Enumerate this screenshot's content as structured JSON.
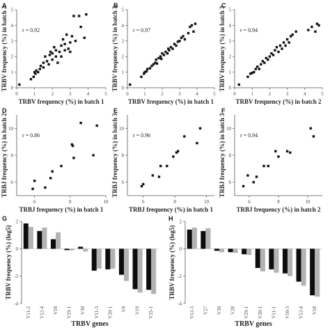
{
  "figure": {
    "colors": {
      "point": "#111111",
      "bar_dark": "#0d0d0d",
      "bar_light": "#b3b3b3",
      "axis": "#555555"
    }
  },
  "chart_data": [
    {
      "panel": "A",
      "type": "scatter",
      "xlabel": "TRBV frequency (%) in batch 1",
      "ylabel": "TRBV frequency (%) in batch 2",
      "annotation": "r = 0.92",
      "xlim": [
        0,
        5
      ],
      "ylim": [
        0,
        5
      ],
      "xticks": [
        0,
        1,
        2,
        3,
        4,
        5
      ],
      "yticks": [
        0,
        1,
        2,
        3,
        4,
        5
      ],
      "points": [
        [
          0.15,
          0.2
        ],
        [
          0.8,
          0.55
        ],
        [
          0.95,
          0.7
        ],
        [
          1.0,
          1.0
        ],
        [
          1.05,
          0.9
        ],
        [
          1.1,
          1.1
        ],
        [
          1.2,
          1.0
        ],
        [
          1.3,
          1.2
        ],
        [
          1.35,
          1.4
        ],
        [
          1.5,
          1.3
        ],
        [
          1.5,
          1.6
        ],
        [
          1.6,
          2.0
        ],
        [
          1.7,
          1.7
        ],
        [
          1.8,
          1.5
        ],
        [
          1.85,
          2.1
        ],
        [
          1.9,
          2.3
        ],
        [
          2.0,
          2.2
        ],
        [
          2.0,
          1.8
        ],
        [
          2.1,
          2.6
        ],
        [
          2.2,
          2.0
        ],
        [
          2.2,
          2.4
        ],
        [
          2.3,
          1.6
        ],
        [
          2.4,
          2.3
        ],
        [
          2.5,
          2.7
        ],
        [
          2.5,
          2.0
        ],
        [
          2.6,
          3.1
        ],
        [
          2.7,
          2.8
        ],
        [
          2.7,
          2.4
        ],
        [
          2.8,
          3.4
        ],
        [
          2.9,
          2.5
        ],
        [
          3.0,
          2.9
        ],
        [
          3.0,
          2.3
        ],
        [
          3.1,
          3.3
        ],
        [
          3.2,
          4.6
        ],
        [
          3.3,
          3.0
        ],
        [
          3.5,
          4.6
        ],
        [
          3.6,
          3.9
        ],
        [
          3.8,
          3.2
        ],
        [
          3.9,
          4.7
        ]
      ]
    },
    {
      "panel": "B",
      "type": "scatter",
      "xlabel": "TRBV frequency (%) in batch 1",
      "ylabel": "TRBV frequency (%) in batch 3",
      "annotation": "r = 0.97",
      "xlim": [
        0,
        5
      ],
      "ylim": [
        0,
        5
      ],
      "xticks": [
        0,
        1,
        2,
        3,
        4,
        5
      ],
      "yticks": [
        0,
        1,
        2,
        3,
        4,
        5
      ],
      "points": [
        [
          0.15,
          0.2
        ],
        [
          0.8,
          0.7
        ],
        [
          0.95,
          0.9
        ],
        [
          1.0,
          1.0
        ],
        [
          1.1,
          1.05
        ],
        [
          1.15,
          1.2
        ],
        [
          1.3,
          1.25
        ],
        [
          1.4,
          1.4
        ],
        [
          1.5,
          1.5
        ],
        [
          1.6,
          1.6
        ],
        [
          1.65,
          1.8
        ],
        [
          1.7,
          1.55
        ],
        [
          1.8,
          1.9
        ],
        [
          1.9,
          2.0
        ],
        [
          1.95,
          1.85
        ],
        [
          2.0,
          2.2
        ],
        [
          2.1,
          2.1
        ],
        [
          2.2,
          2.3
        ],
        [
          2.3,
          2.2
        ],
        [
          2.35,
          2.5
        ],
        [
          2.4,
          2.4
        ],
        [
          2.5,
          2.6
        ],
        [
          2.6,
          2.5
        ],
        [
          2.7,
          2.8
        ],
        [
          2.8,
          2.7
        ],
        [
          2.9,
          2.95
        ],
        [
          3.0,
          3.0
        ],
        [
          3.1,
          3.2
        ],
        [
          3.2,
          3.3
        ],
        [
          3.3,
          3.1
        ],
        [
          3.5,
          3.5
        ],
        [
          3.6,
          3.9
        ],
        [
          3.7,
          4.0
        ],
        [
          3.8,
          3.6
        ],
        [
          3.9,
          4.1
        ]
      ]
    },
    {
      "panel": "C",
      "type": "scatter",
      "xlabel": "TRBV frequency (%) in batch 2",
      "ylabel": "TRBV frequency (%) in batch 3",
      "annotation": "r = 0.94",
      "xlim": [
        0,
        5
      ],
      "ylim": [
        0,
        5
      ],
      "xticks": [
        0,
        1,
        2,
        3,
        4,
        5
      ],
      "yticks": [
        0,
        1,
        2,
        3,
        4,
        5
      ],
      "points": [
        [
          0.25,
          0.2
        ],
        [
          0.75,
          0.7
        ],
        [
          0.9,
          0.9
        ],
        [
          1.0,
          0.95
        ],
        [
          1.1,
          1.0
        ],
        [
          1.2,
          1.2
        ],
        [
          1.3,
          1.35
        ],
        [
          1.4,
          1.2
        ],
        [
          1.5,
          1.5
        ],
        [
          1.6,
          1.7
        ],
        [
          1.7,
          1.6
        ],
        [
          1.8,
          1.9
        ],
        [
          1.9,
          1.8
        ],
        [
          2.0,
          2.0
        ],
        [
          2.1,
          2.2
        ],
        [
          2.2,
          2.1
        ],
        [
          2.3,
          2.4
        ],
        [
          2.4,
          2.6
        ],
        [
          2.5,
          2.3
        ],
        [
          2.6,
          2.7
        ],
        [
          2.7,
          2.5
        ],
        [
          2.8,
          2.9
        ],
        [
          2.9,
          2.7
        ],
        [
          3.0,
          3.1
        ],
        [
          3.1,
          2.9
        ],
        [
          3.2,
          3.3
        ],
        [
          3.3,
          3.4
        ],
        [
          3.5,
          3.6
        ],
        [
          4.2,
          3.7
        ],
        [
          4.4,
          3.9
        ],
        [
          4.6,
          3.6
        ],
        [
          4.7,
          4.1
        ],
        [
          4.8,
          4.0
        ]
      ]
    },
    {
      "panel": "D",
      "type": "scatter",
      "xlabel": "TRBJ frequency (%) in batch 1",
      "ylabel": "TRBJ frequency (%) in batch 2",
      "annotation": "r = 0.86",
      "xlim": [
        5,
        10
      ],
      "ylim": [
        5,
        11
      ],
      "xticks": [
        6,
        8,
        10
      ],
      "yticks": [
        6,
        8,
        10
      ],
      "points": [
        [
          5.9,
          5.5
        ],
        [
          6.0,
          6.1
        ],
        [
          6.6,
          5.6
        ],
        [
          6.9,
          6.3
        ],
        [
          7.0,
          6.8
        ],
        [
          7.5,
          7.2
        ],
        [
          8.1,
          8.8
        ],
        [
          8.15,
          8.7
        ],
        [
          8.2,
          7.8
        ],
        [
          8.6,
          10.4
        ],
        [
          9.3,
          8.0
        ],
        [
          9.5,
          10.2
        ]
      ]
    },
    {
      "panel": "E",
      "type": "scatter",
      "xlabel": "TRBJ frequency (%) in batch 1",
      "ylabel": "TRBJ frequency (%) in batch 3",
      "annotation": "r = 0.96",
      "xlim": [
        5,
        10.5
      ],
      "ylim": [
        5,
        11
      ],
      "xticks": [
        6,
        8,
        10
      ],
      "yticks": [
        6,
        8,
        10
      ],
      "points": [
        [
          5.9,
          5.7
        ],
        [
          6.0,
          5.85
        ],
        [
          6.6,
          6.5
        ],
        [
          7.0,
          6.4
        ],
        [
          7.1,
          7.2
        ],
        [
          7.5,
          7.2
        ],
        [
          7.9,
          7.9
        ],
        [
          8.1,
          8.2
        ],
        [
          8.2,
          8.3
        ],
        [
          8.6,
          9.4
        ],
        [
          9.4,
          8.9
        ],
        [
          9.6,
          10.0
        ]
      ]
    },
    {
      "panel": "F",
      "type": "scatter",
      "xlabel": "TRBJ frequency (%) in batch 2",
      "ylabel": "TRBJ frequency (%) in batch 3",
      "annotation": "r = 0.94",
      "xlim": [
        5,
        11
      ],
      "ylim": [
        5,
        11
      ],
      "xticks": [
        6,
        8,
        10
      ],
      "yticks": [
        6,
        8,
        10
      ],
      "points": [
        [
          5.6,
          5.7
        ],
        [
          5.9,
          6.5
        ],
        [
          6.3,
          6.0
        ],
        [
          6.5,
          6.4
        ],
        [
          7.0,
          7.2
        ],
        [
          7.3,
          7.2
        ],
        [
          7.8,
          8.3
        ],
        [
          8.0,
          7.9
        ],
        [
          8.6,
          8.3
        ],
        [
          8.8,
          8.2
        ],
        [
          10.2,
          10.0
        ],
        [
          10.4,
          9.4
        ]
      ]
    },
    {
      "panel": "G",
      "type": "bar",
      "xlabel": "TRBV genes",
      "ylabel": "TRBV frequency (%) (log5)",
      "ylim": [
        -4,
        2
      ],
      "yticks": [
        -4,
        -2,
        0,
        2
      ],
      "categories": [
        "V11-2",
        "V12-4",
        "V18",
        "V29-1",
        "V30",
        "V11-3",
        "V20-1",
        "V9",
        "V19",
        "V25-1"
      ],
      "series": [
        {
          "values": [
            1.85,
            1.3,
            0.7,
            -0.1,
            0.15,
            -1.6,
            -1.5,
            -1.9,
            -2.95,
            -3.0
          ]
        },
        {
          "values": [
            1.6,
            1.55,
            1.2,
            -0.12,
            -0.2,
            -1.45,
            -1.45,
            -2.35,
            -3.2,
            -3.3
          ]
        }
      ]
    },
    {
      "panel": "H",
      "type": "bar",
      "xlabel": "TRBV genes",
      "ylabel": "TRBV frequency (%) (log5)",
      "ylim": [
        -4,
        2
      ],
      "yticks": [
        -4,
        -2,
        0,
        2
      ],
      "categories": [
        "V12-3",
        "V27",
        "V30",
        "V28",
        "V29-1",
        "V20-1",
        "V11-1",
        "V10-3",
        "V12-4",
        "V18"
      ],
      "series": [
        {
          "values": [
            1.4,
            1.3,
            -0.15,
            -0.25,
            -0.4,
            -1.4,
            -1.5,
            -1.8,
            -2.4,
            -3.4
          ]
        },
        {
          "values": [
            1.55,
            1.5,
            -0.25,
            -0.3,
            -0.45,
            -1.65,
            -1.75,
            -2.0,
            -2.7,
            -3.5
          ]
        }
      ]
    }
  ]
}
